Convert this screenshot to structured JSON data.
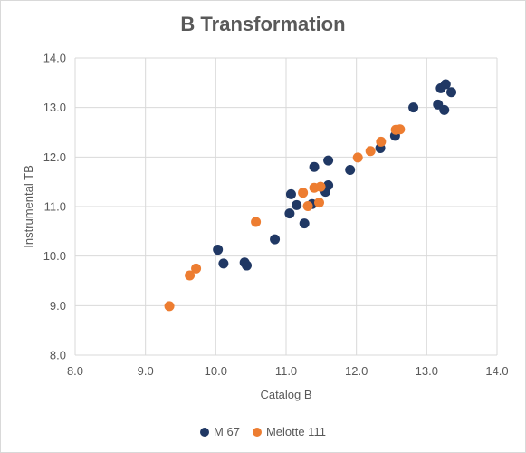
{
  "chart_data": {
    "type": "scatter",
    "title": "B Transformation",
    "xlabel": "Catalog B",
    "ylabel": "Instrumental TB",
    "xlim": [
      8.0,
      14.0
    ],
    "ylim": [
      8.0,
      14.0
    ],
    "x_ticks": [
      "8.0",
      "9.0",
      "10.0",
      "11.0",
      "12.0",
      "13.0",
      "14.0"
    ],
    "y_ticks": [
      "8.0",
      "9.0",
      "10.0",
      "11.0",
      "12.0",
      "13.0",
      "14.0"
    ],
    "grid": true,
    "legend_position": "bottom",
    "series": [
      {
        "name": "M 67",
        "color": "#203864",
        "points": [
          [
            10.03,
            10.13
          ],
          [
            10.11,
            9.85
          ],
          [
            10.41,
            9.87
          ],
          [
            10.44,
            9.81
          ],
          [
            10.84,
            10.34
          ],
          [
            11.05,
            10.86
          ],
          [
            11.07,
            11.25
          ],
          [
            11.15,
            11.03
          ],
          [
            11.26,
            10.66
          ],
          [
            11.37,
            11.05
          ],
          [
            11.4,
            11.8
          ],
          [
            11.56,
            11.3
          ],
          [
            11.6,
            11.43
          ],
          [
            11.6,
            11.93
          ],
          [
            11.91,
            11.74
          ],
          [
            12.34,
            12.18
          ],
          [
            12.55,
            12.43
          ],
          [
            12.81,
            13.0
          ],
          [
            13.16,
            13.06
          ],
          [
            13.2,
            13.39
          ],
          [
            13.25,
            12.95
          ],
          [
            13.27,
            13.47
          ],
          [
            13.35,
            13.31
          ]
        ]
      },
      {
        "name": "Melotte 111",
        "color": "#ed7d31",
        "points": [
          [
            9.34,
            8.99
          ],
          [
            9.63,
            9.61
          ],
          [
            9.72,
            9.75
          ],
          [
            10.57,
            10.69
          ],
          [
            11.24,
            11.28
          ],
          [
            11.31,
            11.01
          ],
          [
            11.4,
            11.38
          ],
          [
            11.47,
            11.08
          ],
          [
            11.49,
            11.4
          ],
          [
            12.02,
            11.99
          ],
          [
            12.2,
            12.12
          ],
          [
            12.35,
            12.31
          ],
          [
            12.56,
            12.55
          ],
          [
            12.62,
            12.56
          ]
        ]
      }
    ]
  }
}
